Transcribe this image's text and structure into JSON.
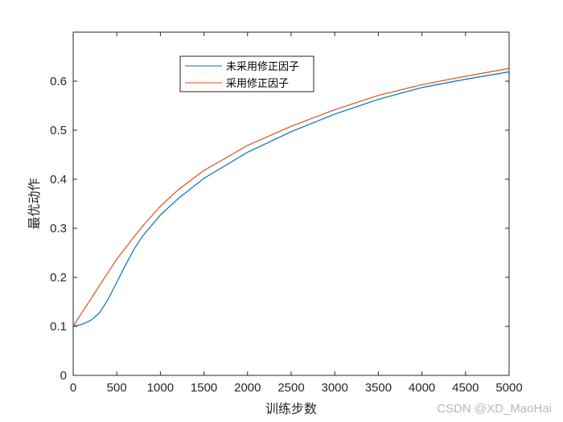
{
  "chart_data": {
    "type": "line",
    "title": "",
    "xlabel": "训练步数",
    "ylabel": "最优动作",
    "xlim": [
      0,
      5000
    ],
    "ylim": [
      0,
      0.7
    ],
    "xticks": [
      0,
      500,
      1000,
      1500,
      2000,
      2500,
      3000,
      3500,
      4000,
      4500,
      5000
    ],
    "yticks": [
      0,
      0.1,
      0.2,
      0.3,
      0.4,
      0.5,
      0.6
    ],
    "grid": false,
    "legend_position": "top-left",
    "series": [
      {
        "name": "未采用修正因子",
        "color": "#0072BD",
        "x": [
          0,
          100,
          200,
          300,
          400,
          500,
          600,
          700,
          800,
          1000,
          1200,
          1500,
          2000,
          2500,
          3000,
          3500,
          4000,
          4500,
          5000
        ],
        "y": [
          0.1,
          0.104,
          0.112,
          0.127,
          0.155,
          0.19,
          0.225,
          0.258,
          0.285,
          0.327,
          0.36,
          0.402,
          0.455,
          0.497,
          0.533,
          0.563,
          0.587,
          0.604,
          0.619
        ]
      },
      {
        "name": "采用修正因子",
        "color": "#D95319",
        "x": [
          0,
          100,
          200,
          300,
          400,
          500,
          600,
          700,
          800,
          1000,
          1200,
          1500,
          2000,
          2500,
          3000,
          3500,
          4000,
          4500,
          5000
        ],
        "y": [
          0.1,
          0.128,
          0.155,
          0.183,
          0.21,
          0.237,
          0.26,
          0.283,
          0.305,
          0.345,
          0.378,
          0.418,
          0.469,
          0.508,
          0.542,
          0.571,
          0.593,
          0.61,
          0.626
        ]
      }
    ]
  },
  "watermark": "CSDN @XD_MaoHai"
}
